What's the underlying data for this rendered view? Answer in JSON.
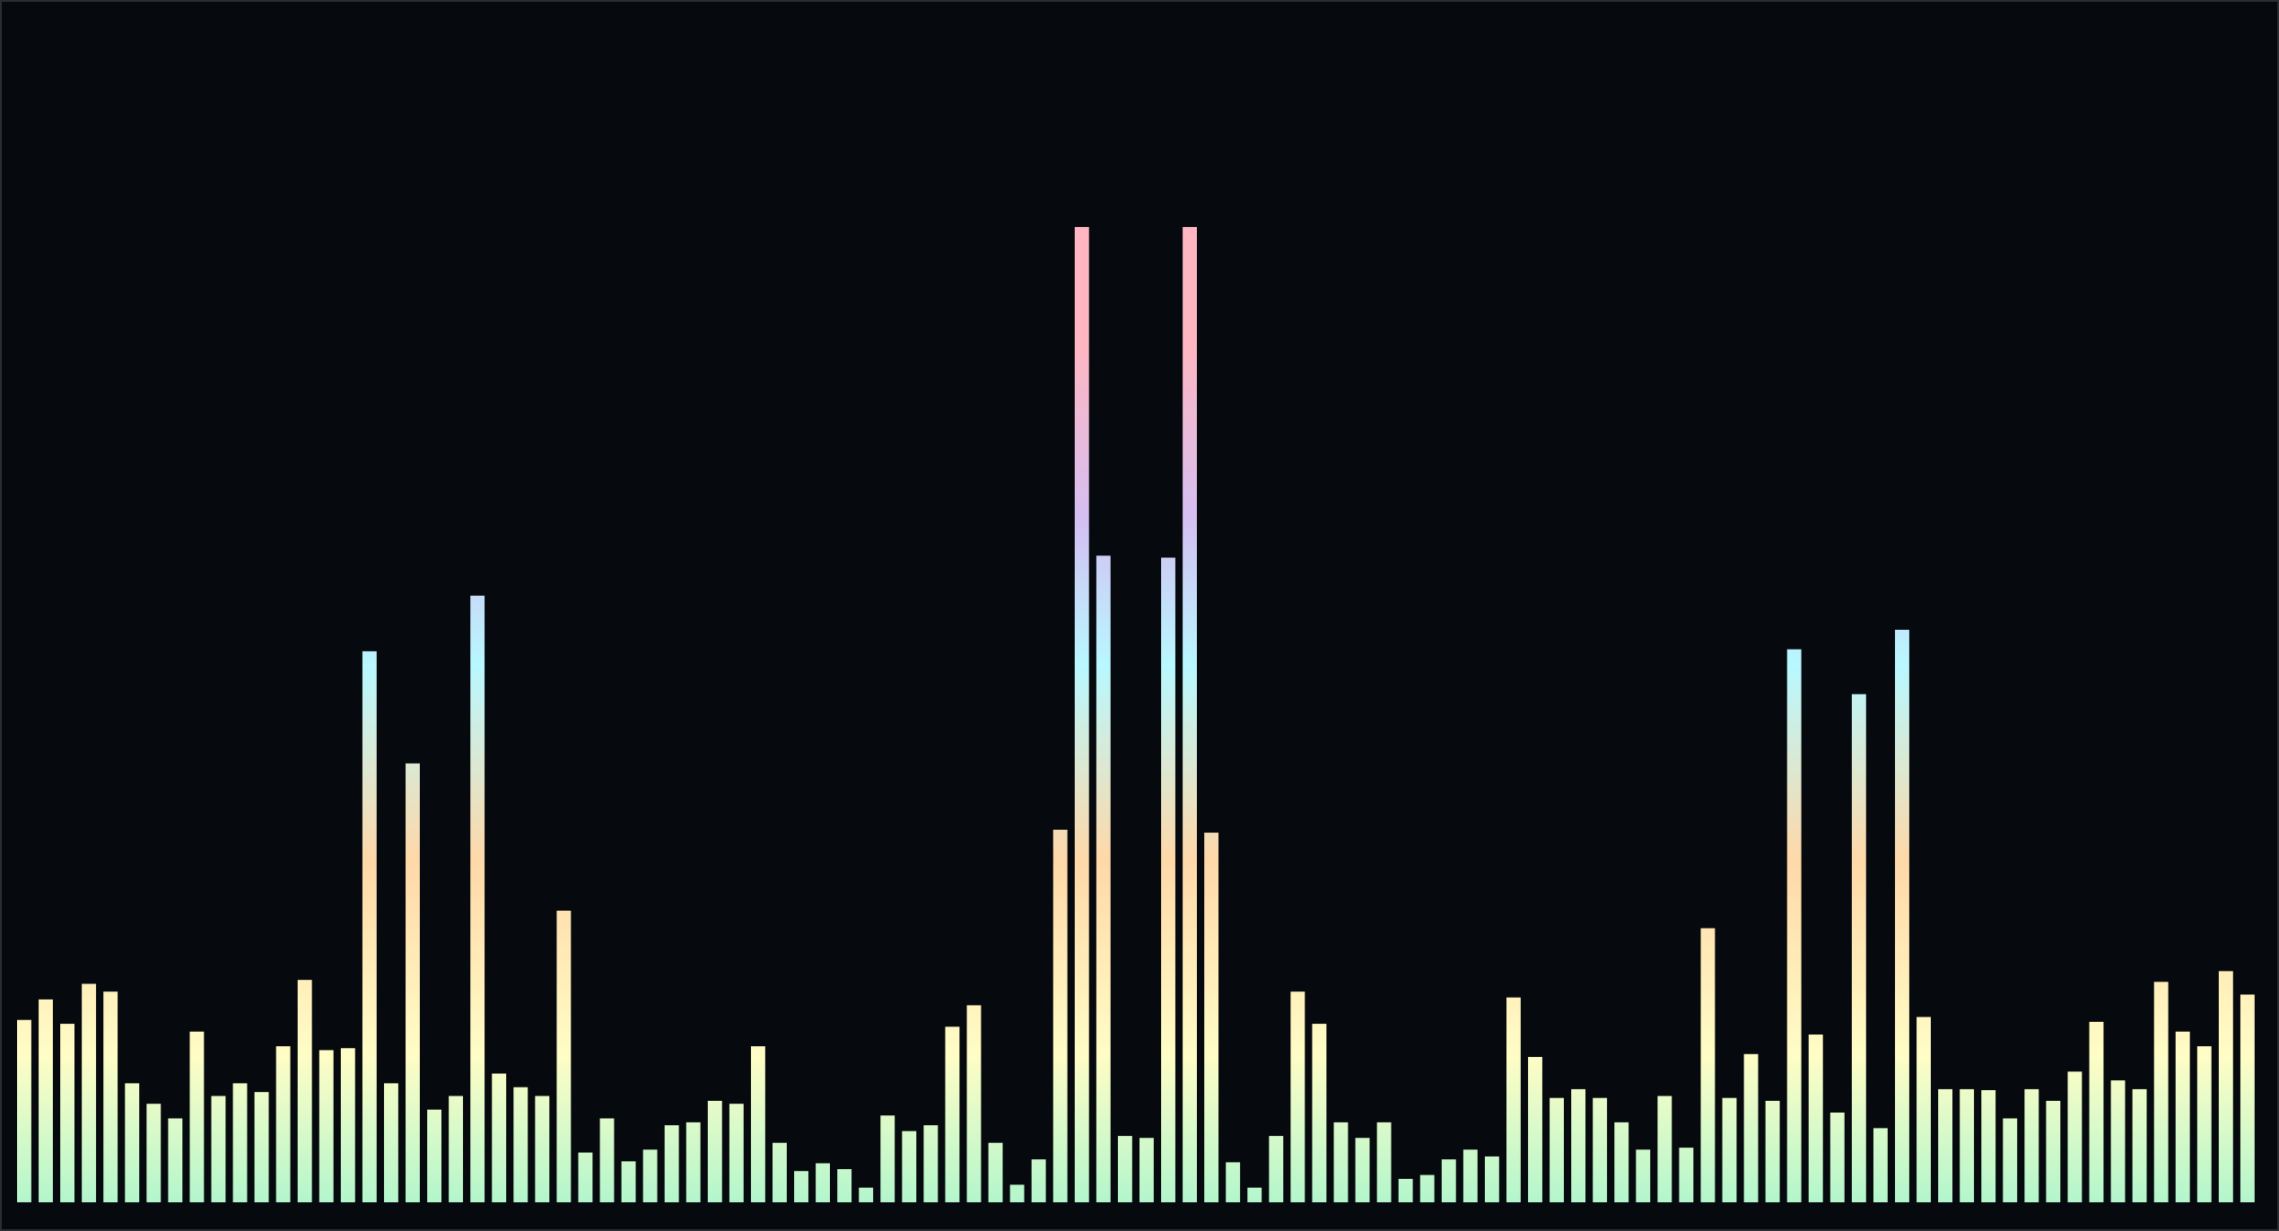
{
  "chart_data": {
    "type": "bar",
    "title": "",
    "xlabel": "",
    "ylabel": "",
    "ylim": [
      0,
      100
    ],
    "grid": false,
    "legend": "none",
    "background_color": "#06090d",
    "border_color": "#2a2d31",
    "gradient_colors": {
      "base": "#b3f6cc",
      "low": "#fffdc6",
      "mid": "#ffd8a8",
      "high": "#b8f8ff",
      "upper": "#d4bff2",
      "peak": "#ffb6c1"
    },
    "values": [
      18.7,
      20.8,
      18.3,
      22.4,
      21.6,
      12.2,
      10.1,
      8.6,
      17.5,
      10.9,
      12.2,
      11.3,
      16.0,
      22.8,
      15.6,
      15.8,
      56.5,
      12.2,
      45.0,
      9.5,
      10.9,
      62.2,
      13.2,
      11.8,
      10.9,
      29.9,
      5.1,
      8.6,
      4.2,
      5.4,
      7.9,
      8.2,
      10.4,
      10.1,
      16.0,
      6.1,
      3.2,
      4.0,
      3.4,
      1.5,
      8.9,
      7.3,
      7.9,
      18.0,
      20.2,
      6.1,
      1.8,
      4.4,
      38.2,
      100.0,
      66.3,
      6.8,
      6.6,
      66.1,
      100.0,
      37.9,
      4.1,
      1.5,
      6.8,
      21.6,
      18.3,
      8.2,
      6.6,
      8.2,
      2.4,
      2.8,
      4.4,
      5.4,
      4.7,
      21.0,
      14.9,
      10.7,
      11.6,
      10.7,
      8.2,
      5.4,
      10.9,
      5.6,
      28.1,
      10.7,
      15.2,
      10.4,
      56.7,
      17.2,
      9.2,
      52.1,
      7.6,
      58.7,
      19.0,
      11.6,
      11.6,
      11.5,
      8.6,
      11.6,
      10.4,
      13.4,
      18.5,
      12.5,
      11.6,
      22.6,
      17.5,
      16.0,
      23.7,
      21.3
    ]
  }
}
